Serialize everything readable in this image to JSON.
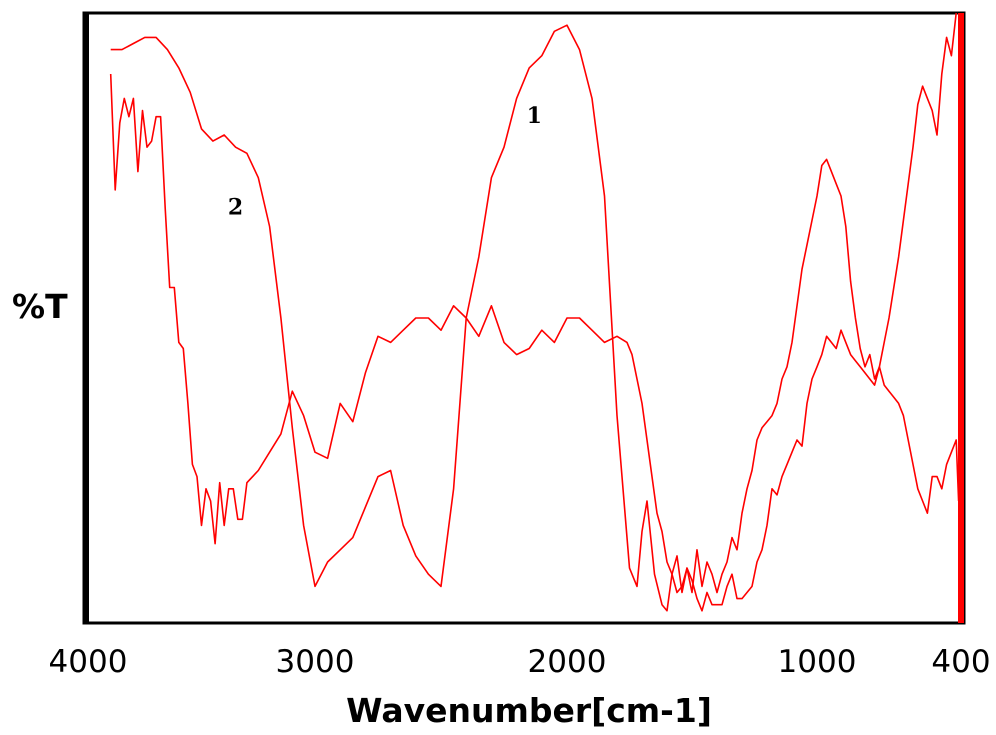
{
  "chart_data": {
    "type": "line",
    "title": "",
    "xlabel": "Wavenumber[cm-1]",
    "ylabel": "%T",
    "xlim": [
      4000,
      400
    ],
    "ylim": [
      0,
      100
    ],
    "x_reversed": true,
    "x_axis_breaks": "non-linear: 4000-2000 compressed, 2000-400 expanded",
    "grid": false,
    "legend": "none",
    "x_ticks": [
      4000,
      3000,
      2000,
      1000,
      400
    ],
    "x_tick_labels": [
      "4000",
      "3000",
      "2000",
      "1000",
      "400"
    ],
    "line_color": "#ff0000",
    "series": [
      {
        "label": "1",
        "label_at": [
          2130,
          82
        ],
        "x": [
          3900,
          3850,
          3800,
          3750,
          3700,
          3650,
          3600,
          3550,
          3500,
          3450,
          3400,
          3350,
          3300,
          3250,
          3200,
          3150,
          3100,
          3050,
          3000,
          2950,
          2900,
          2850,
          2800,
          2750,
          2700,
          2650,
          2600,
          2550,
          2500,
          2450,
          2400,
          2350,
          2300,
          2250,
          2200,
          2150,
          2100,
          2050,
          2000,
          1950,
          1900,
          1850,
          1800,
          1750,
          1720,
          1700,
          1680,
          1650,
          1620,
          1600,
          1580,
          1560,
          1540,
          1520,
          1500,
          1480,
          1460,
          1440,
          1420,
          1400,
          1380,
          1360,
          1340,
          1320,
          1300,
          1280,
          1260,
          1240,
          1220,
          1200,
          1180,
          1160,
          1140,
          1120,
          1100,
          1080,
          1060,
          1040,
          1020,
          1000,
          980,
          960,
          940,
          920,
          900,
          880,
          860,
          840,
          820,
          800,
          780,
          760,
          740,
          720,
          700,
          680,
          660,
          640,
          620,
          600,
          580,
          560,
          540,
          520,
          500,
          480,
          460,
          440,
          420
        ],
        "y": [
          94,
          94,
          95,
          96,
          96,
          94,
          91,
          87,
          81,
          79,
          80,
          78,
          77,
          73,
          65,
          50,
          32,
          16,
          6,
          10,
          12,
          14,
          19,
          24,
          25,
          16,
          11,
          8,
          6,
          22,
          50,
          60,
          73,
          78,
          86,
          91,
          93,
          97,
          98,
          94,
          86,
          70,
          34,
          9,
          6,
          15,
          20,
          8,
          3,
          2,
          8,
          11,
          5,
          9,
          7,
          4,
          2,
          5,
          3,
          3,
          3,
          6,
          8,
          4,
          4,
          5,
          6,
          10,
          12,
          16,
          22,
          21,
          24,
          26,
          28,
          30,
          29,
          36,
          40,
          42,
          44,
          47,
          46,
          45,
          48,
          46,
          44,
          43,
          42,
          41,
          40,
          39,
          42,
          46,
          50,
          55,
          60,
          66,
          72,
          78,
          85,
          88,
          86,
          84,
          80,
          90,
          96,
          93,
          100
        ]
      },
      {
        "label": "2",
        "label_at": [
          3350,
          67
        ],
        "x": [
          3900,
          3880,
          3860,
          3840,
          3820,
          3800,
          3780,
          3760,
          3740,
          3720,
          3700,
          3680,
          3660,
          3640,
          3620,
          3600,
          3580,
          3560,
          3540,
          3520,
          3500,
          3480,
          3460,
          3440,
          3420,
          3400,
          3380,
          3360,
          3340,
          3320,
          3300,
          3250,
          3200,
          3150,
          3100,
          3050,
          3000,
          2950,
          2900,
          2850,
          2800,
          2750,
          2700,
          2650,
          2600,
          2550,
          2500,
          2450,
          2400,
          2350,
          2300,
          2250,
          2200,
          2150,
          2100,
          2050,
          2000,
          1950,
          1900,
          1850,
          1800,
          1760,
          1740,
          1720,
          1700,
          1680,
          1660,
          1640,
          1620,
          1600,
          1580,
          1560,
          1540,
          1520,
          1500,
          1480,
          1460,
          1440,
          1420,
          1400,
          1380,
          1360,
          1340,
          1320,
          1300,
          1280,
          1260,
          1240,
          1220,
          1200,
          1180,
          1160,
          1140,
          1120,
          1100,
          1080,
          1060,
          1040,
          1020,
          1000,
          980,
          960,
          940,
          920,
          900,
          880,
          860,
          840,
          820,
          800,
          780,
          760,
          740,
          720,
          700,
          680,
          660,
          640,
          620,
          600,
          580,
          560,
          540,
          520,
          500,
          480,
          460,
          440,
          420,
          410
        ],
        "y": [
          90,
          71,
          82,
          86,
          83,
          86,
          74,
          84,
          78,
          79,
          83,
          83,
          68,
          55,
          55,
          46,
          45,
          36,
          26,
          24,
          16,
          22,
          20,
          13,
          23,
          16,
          22,
          22,
          17,
          17,
          23,
          25,
          28,
          31,
          38,
          34,
          28,
          27,
          36,
          33,
          41,
          47,
          46,
          48,
          50,
          50,
          48,
          52,
          50,
          47,
          52,
          46,
          44,
          45,
          48,
          46,
          50,
          50,
          48,
          46,
          47,
          46,
          44,
          40,
          36,
          30,
          24,
          18,
          15,
          10,
          8,
          5,
          6,
          9,
          5,
          12,
          6,
          10,
          8,
          5,
          8,
          10,
          14,
          12,
          18,
          22,
          25,
          30,
          32,
          33,
          34,
          36,
          40,
          42,
          46,
          52,
          58,
          62,
          66,
          70,
          75,
          76,
          74,
          72,
          70,
          65,
          56,
          50,
          45,
          42,
          44,
          40,
          42,
          39,
          38,
          37,
          36,
          34,
          30,
          26,
          22,
          20,
          18,
          24,
          24,
          22,
          26,
          28,
          30,
          20
        ]
      }
    ]
  }
}
